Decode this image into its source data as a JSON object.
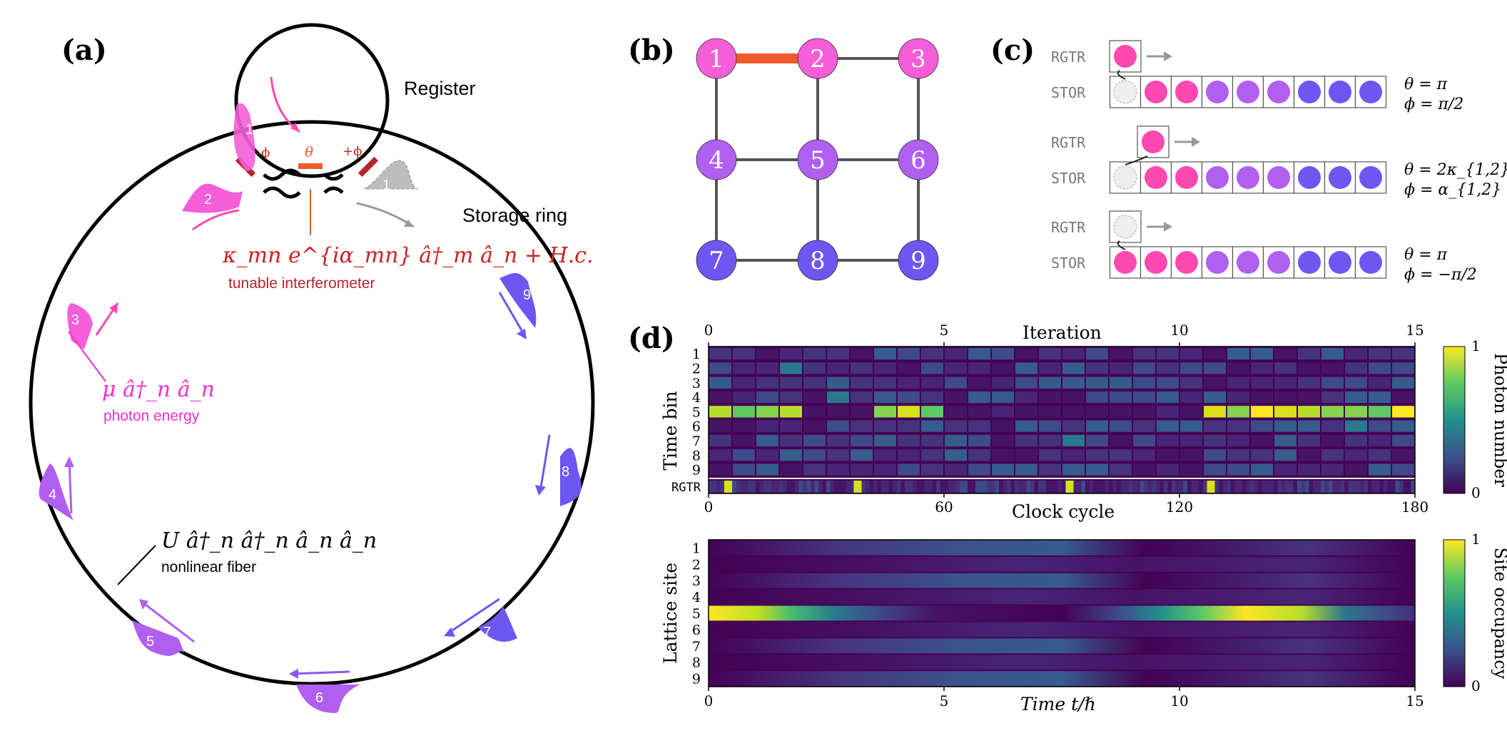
{
  "colors": {
    "magenta": "#f45ed8",
    "pink": "#ff48b0",
    "violet": "#b15ff0",
    "purple": "#8e56f0",
    "blue": "#6d56f2",
    "orange": "#f25a2b",
    "dark_red": "#b4252a",
    "grey": "#9a9a9a",
    "text_red": "#cc2222",
    "text_magenta": "#f030c8"
  },
  "panels": {
    "a": {
      "label": "(a)",
      "register_label": "Register",
      "storage_label": "Storage ring",
      "pulse_labels": [
        "1",
        "2",
        "3",
        "4",
        "5",
        "6",
        "7",
        "8",
        "9"
      ],
      "register_pulse_label": "1",
      "ghost_pulse_label": "1",
      "minus_phi": "-ϕ",
      "theta": "θ",
      "plus_phi": "+ϕ",
      "hamiltonian_coupling": "κ_mn e^{iα_mn} â†_m â_n + H.c.",
      "coupling_caption": "tunable interferometer",
      "hamiltonian_energy": "μ â†_n â_n",
      "energy_caption": "photon energy",
      "hamiltonian_nonlinear": "U â†_n â†_n â_n â_n",
      "nonlinear_caption": "nonlinear fiber"
    },
    "b": {
      "label": "(b)",
      "nodes": [
        "1",
        "2",
        "3",
        "4",
        "5",
        "6",
        "7",
        "8",
        "9"
      ],
      "edges": [
        [
          1,
          2
        ],
        [
          2,
          3
        ],
        [
          1,
          4
        ],
        [
          2,
          5
        ],
        [
          3,
          6
        ],
        [
          4,
          5
        ],
        [
          5,
          6
        ],
        [
          4,
          7
        ],
        [
          5,
          8
        ],
        [
          6,
          9
        ],
        [
          7,
          8
        ],
        [
          8,
          9
        ]
      ],
      "highlight_edge": [
        1,
        2
      ]
    },
    "c": {
      "label": "(c)",
      "rows": [
        {
          "rgtr": "RGTR",
          "stor": "STOR",
          "theta": "θ = π",
          "phi": "ϕ = π/2"
        },
        {
          "rgtr": "RGTR",
          "stor": "STOR",
          "theta": "θ = 2κ_{1,2}",
          "phi": "ϕ = α_{1,2}"
        },
        {
          "rgtr": "RGTR",
          "stor": "STOR",
          "theta": "θ = π",
          "phi": "ϕ = −π/2"
        }
      ]
    },
    "d": {
      "label": "(d)",
      "top_axis_label": "Iteration",
      "top_axis_ticks": [
        "0",
        "5",
        "10",
        "15"
      ],
      "bottom_axis_label": "Clock cycle",
      "bottom_axis_ticks": [
        "0",
        "60",
        "120",
        "180"
      ],
      "y_label_top": "Time bin",
      "y_ticks": [
        "1",
        "2",
        "3",
        "4",
        "5",
        "6",
        "7",
        "8",
        "9"
      ],
      "rgtr_row_label": "RGTR",
      "colorbar_top_label": "Photon number",
      "colorbar_top_ticks": [
        "1",
        "0"
      ],
      "y_label_bottom": "Lattice site",
      "x_label_bottom": "Time t/ℏ",
      "bottom_x_ticks": [
        "0",
        "5",
        "10",
        "15"
      ],
      "colorbar_bottom_label": "Site occupancy",
      "colorbar_bottom_ticks": [
        "1",
        "0"
      ]
    }
  },
  "chart_data": [
    {
      "type": "heatmap",
      "title": "",
      "xlabel": "Clock cycle",
      "x2label": "Iteration",
      "ylabel": "Time bin",
      "xlim": [
        0,
        180
      ],
      "x2lim": [
        0,
        15
      ],
      "colorbar_label": "Photon number",
      "colorbar_range": [
        0,
        1
      ],
      "rows": [
        "1",
        "2",
        "3",
        "4",
        "5",
        "6",
        "7",
        "8",
        "9",
        "RGTR"
      ],
      "time_bin_5_bright_intervals": [
        [
          0,
          2
        ],
        [
          3.5,
          5
        ],
        [
          10.5,
          15
        ]
      ],
      "note_values": "Time bin 5 is high (≈0.8–1.0) during iterations 0–2 and ≈10–14; other bins low (≈0–0.4)."
    },
    {
      "type": "heatmap",
      "title": "",
      "xlabel": "Time t/ℏ",
      "ylabel": "Lattice site",
      "xlim": [
        0,
        15
      ],
      "colorbar_label": "Site occupancy",
      "colorbar_range": [
        0,
        1
      ],
      "rows": [
        "1",
        "2",
        "3",
        "4",
        "5",
        "6",
        "7",
        "8",
        "9"
      ],
      "site_5_profile": {
        "t": [
          0,
          1,
          2,
          3,
          4,
          5,
          6,
          7,
          8,
          9,
          10,
          11,
          12,
          13,
          14,
          15
        ],
        "v": [
          1.0,
          0.95,
          0.7,
          0.35,
          0.1,
          0.05,
          0.05,
          0.05,
          0.15,
          0.5,
          0.85,
          1.0,
          0.9,
          0.6,
          0.3,
          0.15
        ]
      },
      "other_sites_max": 0.35
    }
  ]
}
